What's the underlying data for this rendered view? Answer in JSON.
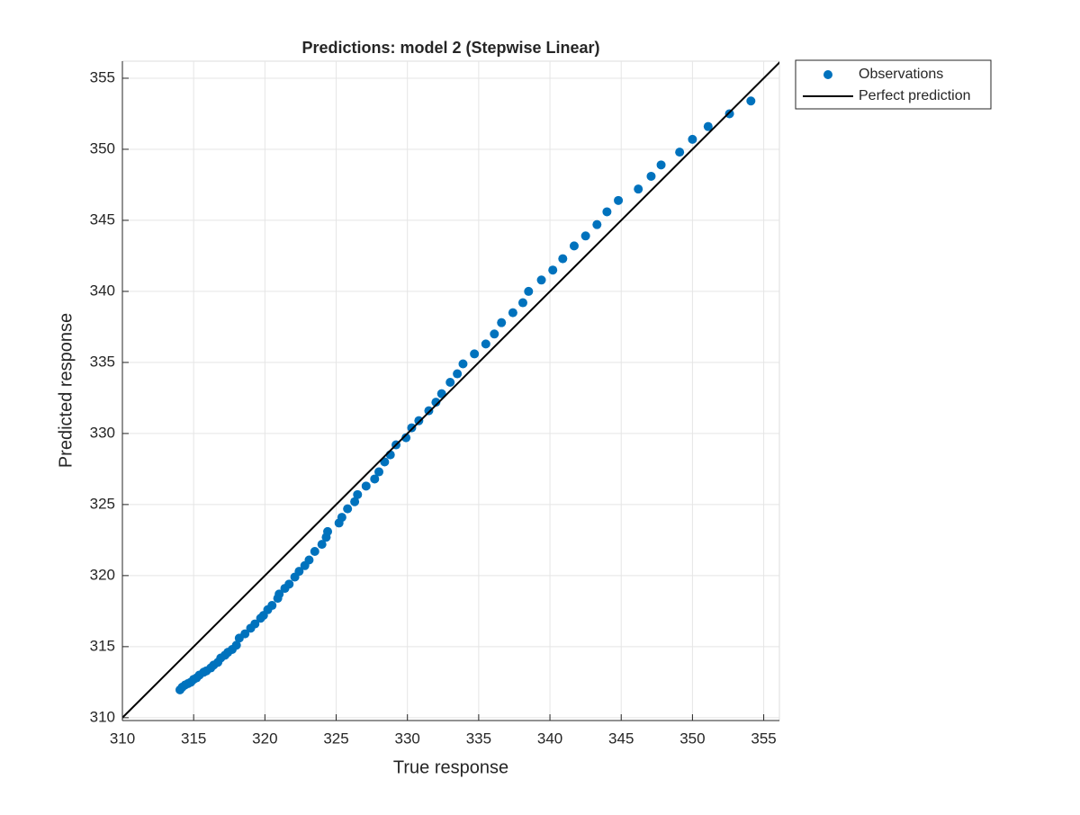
{
  "chart_data": {
    "type": "scatter",
    "title": "Predictions: model 2 (Stepwise Linear)",
    "x_label": "True response",
    "y_label": "Predicted response",
    "xlim": [
      310,
      356.1
    ],
    "ylim": [
      309.8,
      356.2
    ],
    "xticks": [
      310,
      315,
      320,
      325,
      330,
      335,
      340,
      345,
      350,
      355
    ],
    "yticks": [
      310,
      315,
      320,
      325,
      330,
      335,
      340,
      345,
      350,
      355
    ],
    "grid": true,
    "legend": "outside-top-right",
    "series": [
      {
        "name": "Observations",
        "color": "#0072bd",
        "style": "markers",
        "x": [
          314.04,
          314.2,
          314.4,
          314.6,
          314.8,
          315.0,
          315.2,
          315.4,
          315.7,
          315.9,
          316.2,
          316.4,
          316.7,
          316.9,
          317.2,
          317.4,
          317.7,
          318.0,
          318.2,
          318.6,
          319.0,
          319.3,
          319.7,
          319.9,
          320.2,
          320.5,
          320.9,
          321.0,
          321.4,
          321.7,
          322.1,
          322.4,
          322.8,
          323.1,
          323.5,
          324.0,
          324.3,
          324.4,
          325.2,
          325.4,
          325.8,
          326.3,
          326.5,
          327.1,
          327.7,
          328.0,
          328.4,
          328.8,
          329.2,
          329.9,
          330.3,
          330.8,
          331.5,
          332.0,
          332.4,
          333.0,
          333.5,
          333.9,
          334.7,
          335.5,
          336.1,
          336.6,
          337.4,
          338.1,
          338.5,
          339.4,
          340.2,
          340.9,
          341.7,
          342.5,
          343.3,
          344.0,
          344.8,
          346.2,
          347.1,
          347.8,
          349.1,
          350.0,
          351.1,
          352.6,
          354.1
        ],
        "values": [
          311.96,
          312.15,
          312.3,
          312.4,
          312.5,
          312.7,
          312.8,
          313.0,
          313.2,
          313.3,
          313.5,
          313.7,
          313.9,
          314.2,
          314.4,
          314.6,
          314.8,
          315.1,
          315.6,
          315.9,
          316.3,
          316.6,
          317.0,
          317.2,
          317.6,
          317.9,
          318.4,
          318.7,
          319.1,
          319.4,
          319.9,
          320.3,
          320.7,
          321.1,
          321.7,
          322.2,
          322.7,
          323.1,
          323.7,
          324.1,
          324.7,
          325.2,
          325.7,
          326.3,
          326.8,
          327.3,
          328.0,
          328.5,
          329.2,
          329.7,
          330.4,
          330.9,
          331.6,
          332.2,
          332.8,
          333.6,
          334.2,
          334.9,
          335.6,
          336.3,
          337.0,
          337.8,
          338.5,
          339.2,
          340.0,
          340.8,
          341.5,
          342.3,
          343.2,
          343.9,
          344.7,
          345.6,
          346.4,
          347.2,
          348.1,
          348.9,
          349.8,
          350.7,
          351.6,
          352.5,
          353.4
        ]
      },
      {
        "name": "Perfect prediction",
        "color": "#000000",
        "style": "line",
        "x": [
          309.8,
          356.2
        ],
        "values": [
          309.8,
          356.2
        ]
      }
    ]
  }
}
